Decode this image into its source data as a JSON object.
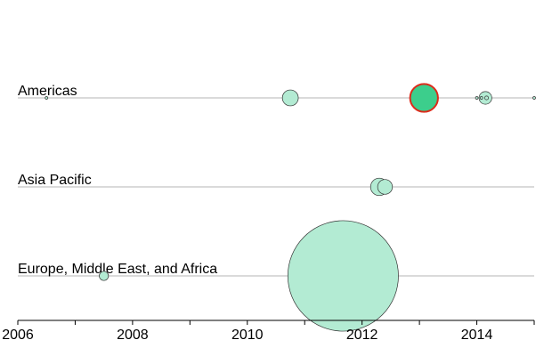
{
  "chart_data": {
    "type": "scatter",
    "title": "",
    "xlabel": "",
    "ylabel": "",
    "xlim": [
      2006,
      2015
    ],
    "x_ticks": [
      "2006",
      "2008",
      "2010",
      "2012",
      "2014"
    ],
    "grid": false,
    "legend": "none",
    "colors": {
      "bubble_fill": "#b3ebd3",
      "highlight_fill": "#3cce8c",
      "highlight_stroke": "#dd2a1a",
      "row_line": "#b5b5b5",
      "axis": "#000000"
    },
    "categories": [
      "Americas",
      "Asia Pacific",
      "Europe, Middle East, and Africa"
    ],
    "series": [
      {
        "category": "Americas",
        "points": [
          {
            "x": 2006.5,
            "size": 0.1
          },
          {
            "x": 2010.75,
            "size": 3.6
          },
          {
            "x": 2013.08,
            "size": 11.0,
            "highlight": true
          },
          {
            "x": 2014.0,
            "size": 0.02
          },
          {
            "x": 2014.08,
            "size": 0.05
          },
          {
            "x": 2014.17,
            "size": 0.2
          },
          {
            "x": 2014.15,
            "size": 2.3
          },
          {
            "x": 2015.0,
            "size": 0.01
          }
        ]
      },
      {
        "category": "Asia Pacific",
        "points": [
          {
            "x": 2012.3,
            "size": 4.3
          },
          {
            "x": 2012.4,
            "size": 3.1
          }
        ]
      },
      {
        "category": "Europe, Middle East, and Africa",
        "points": [
          {
            "x": 2007.5,
            "size": 1.2
          },
          {
            "x": 2011.67,
            "size": 173.0
          }
        ]
      }
    ]
  }
}
